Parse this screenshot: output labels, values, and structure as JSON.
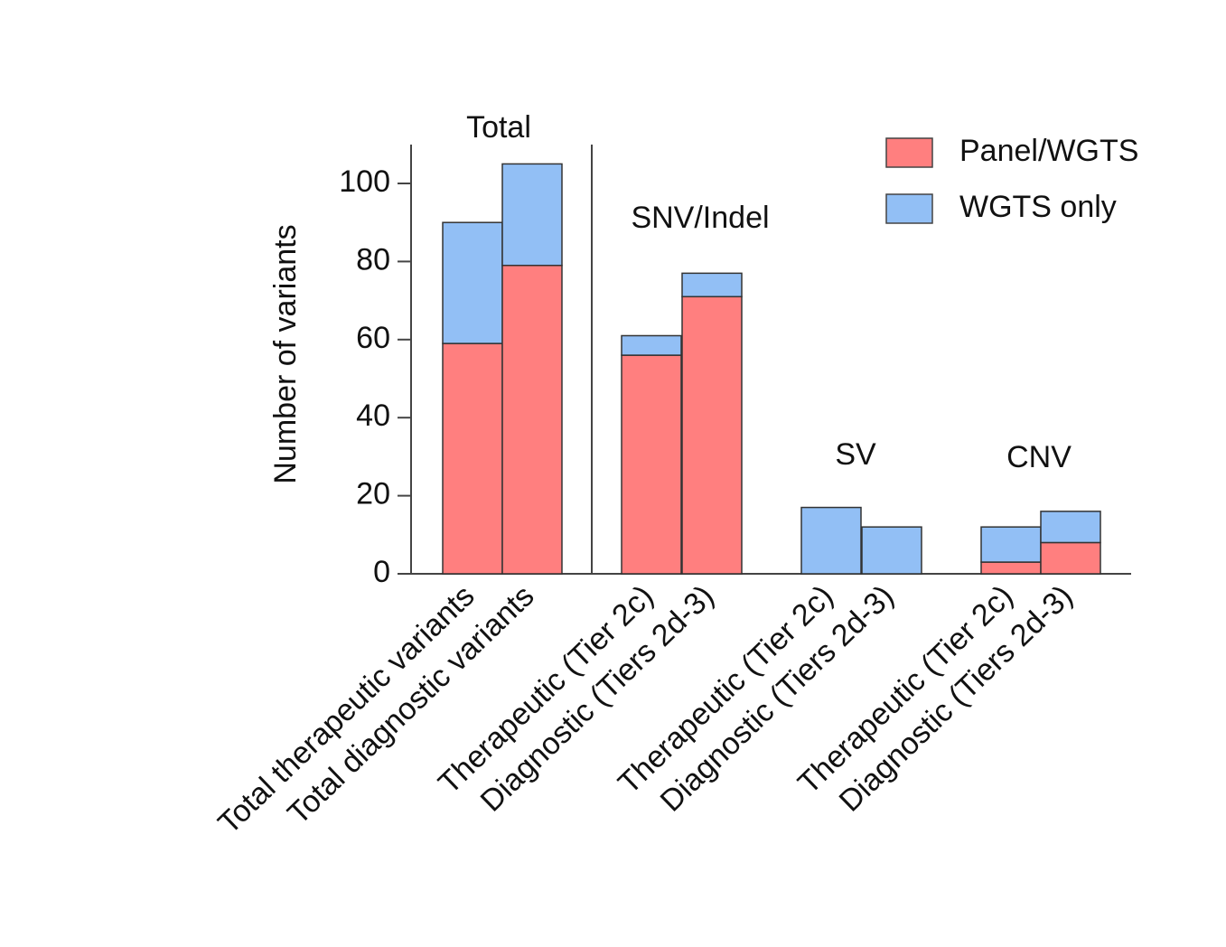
{
  "chart_data": {
    "type": "stacked_bar",
    "group_labels": [
      "Total",
      "SNV/Indel",
      "SV",
      "CNV"
    ],
    "categories": [
      "Total therapeutic variants",
      "Total diagnostic variants",
      "Therapeutic (Tier 2c)",
      "Diagnostic (Tiers 2d-3)",
      "Therapeutic (Tier 2c)",
      "Diagnostic (Tiers 2d-3)",
      "Therapeutic (Tier 2c)",
      "Diagnostic (Tiers 2d-3)"
    ],
    "y_label": "Number of variants",
    "series": [
      {
        "name": "Panel/WGTS",
        "color": "#ff7f7f",
        "values": [
          59,
          79,
          56,
          71,
          0,
          0,
          3,
          8
        ]
      },
      {
        "name": "WGTS only",
        "color": "#92bff5",
        "values": [
          31,
          26,
          5,
          6,
          17,
          12,
          9,
          8
        ]
      }
    ],
    "ylim": [
      0,
      110
    ],
    "yticks": [
      0,
      20,
      40,
      60,
      80,
      100
    ],
    "legend": "upper right"
  }
}
